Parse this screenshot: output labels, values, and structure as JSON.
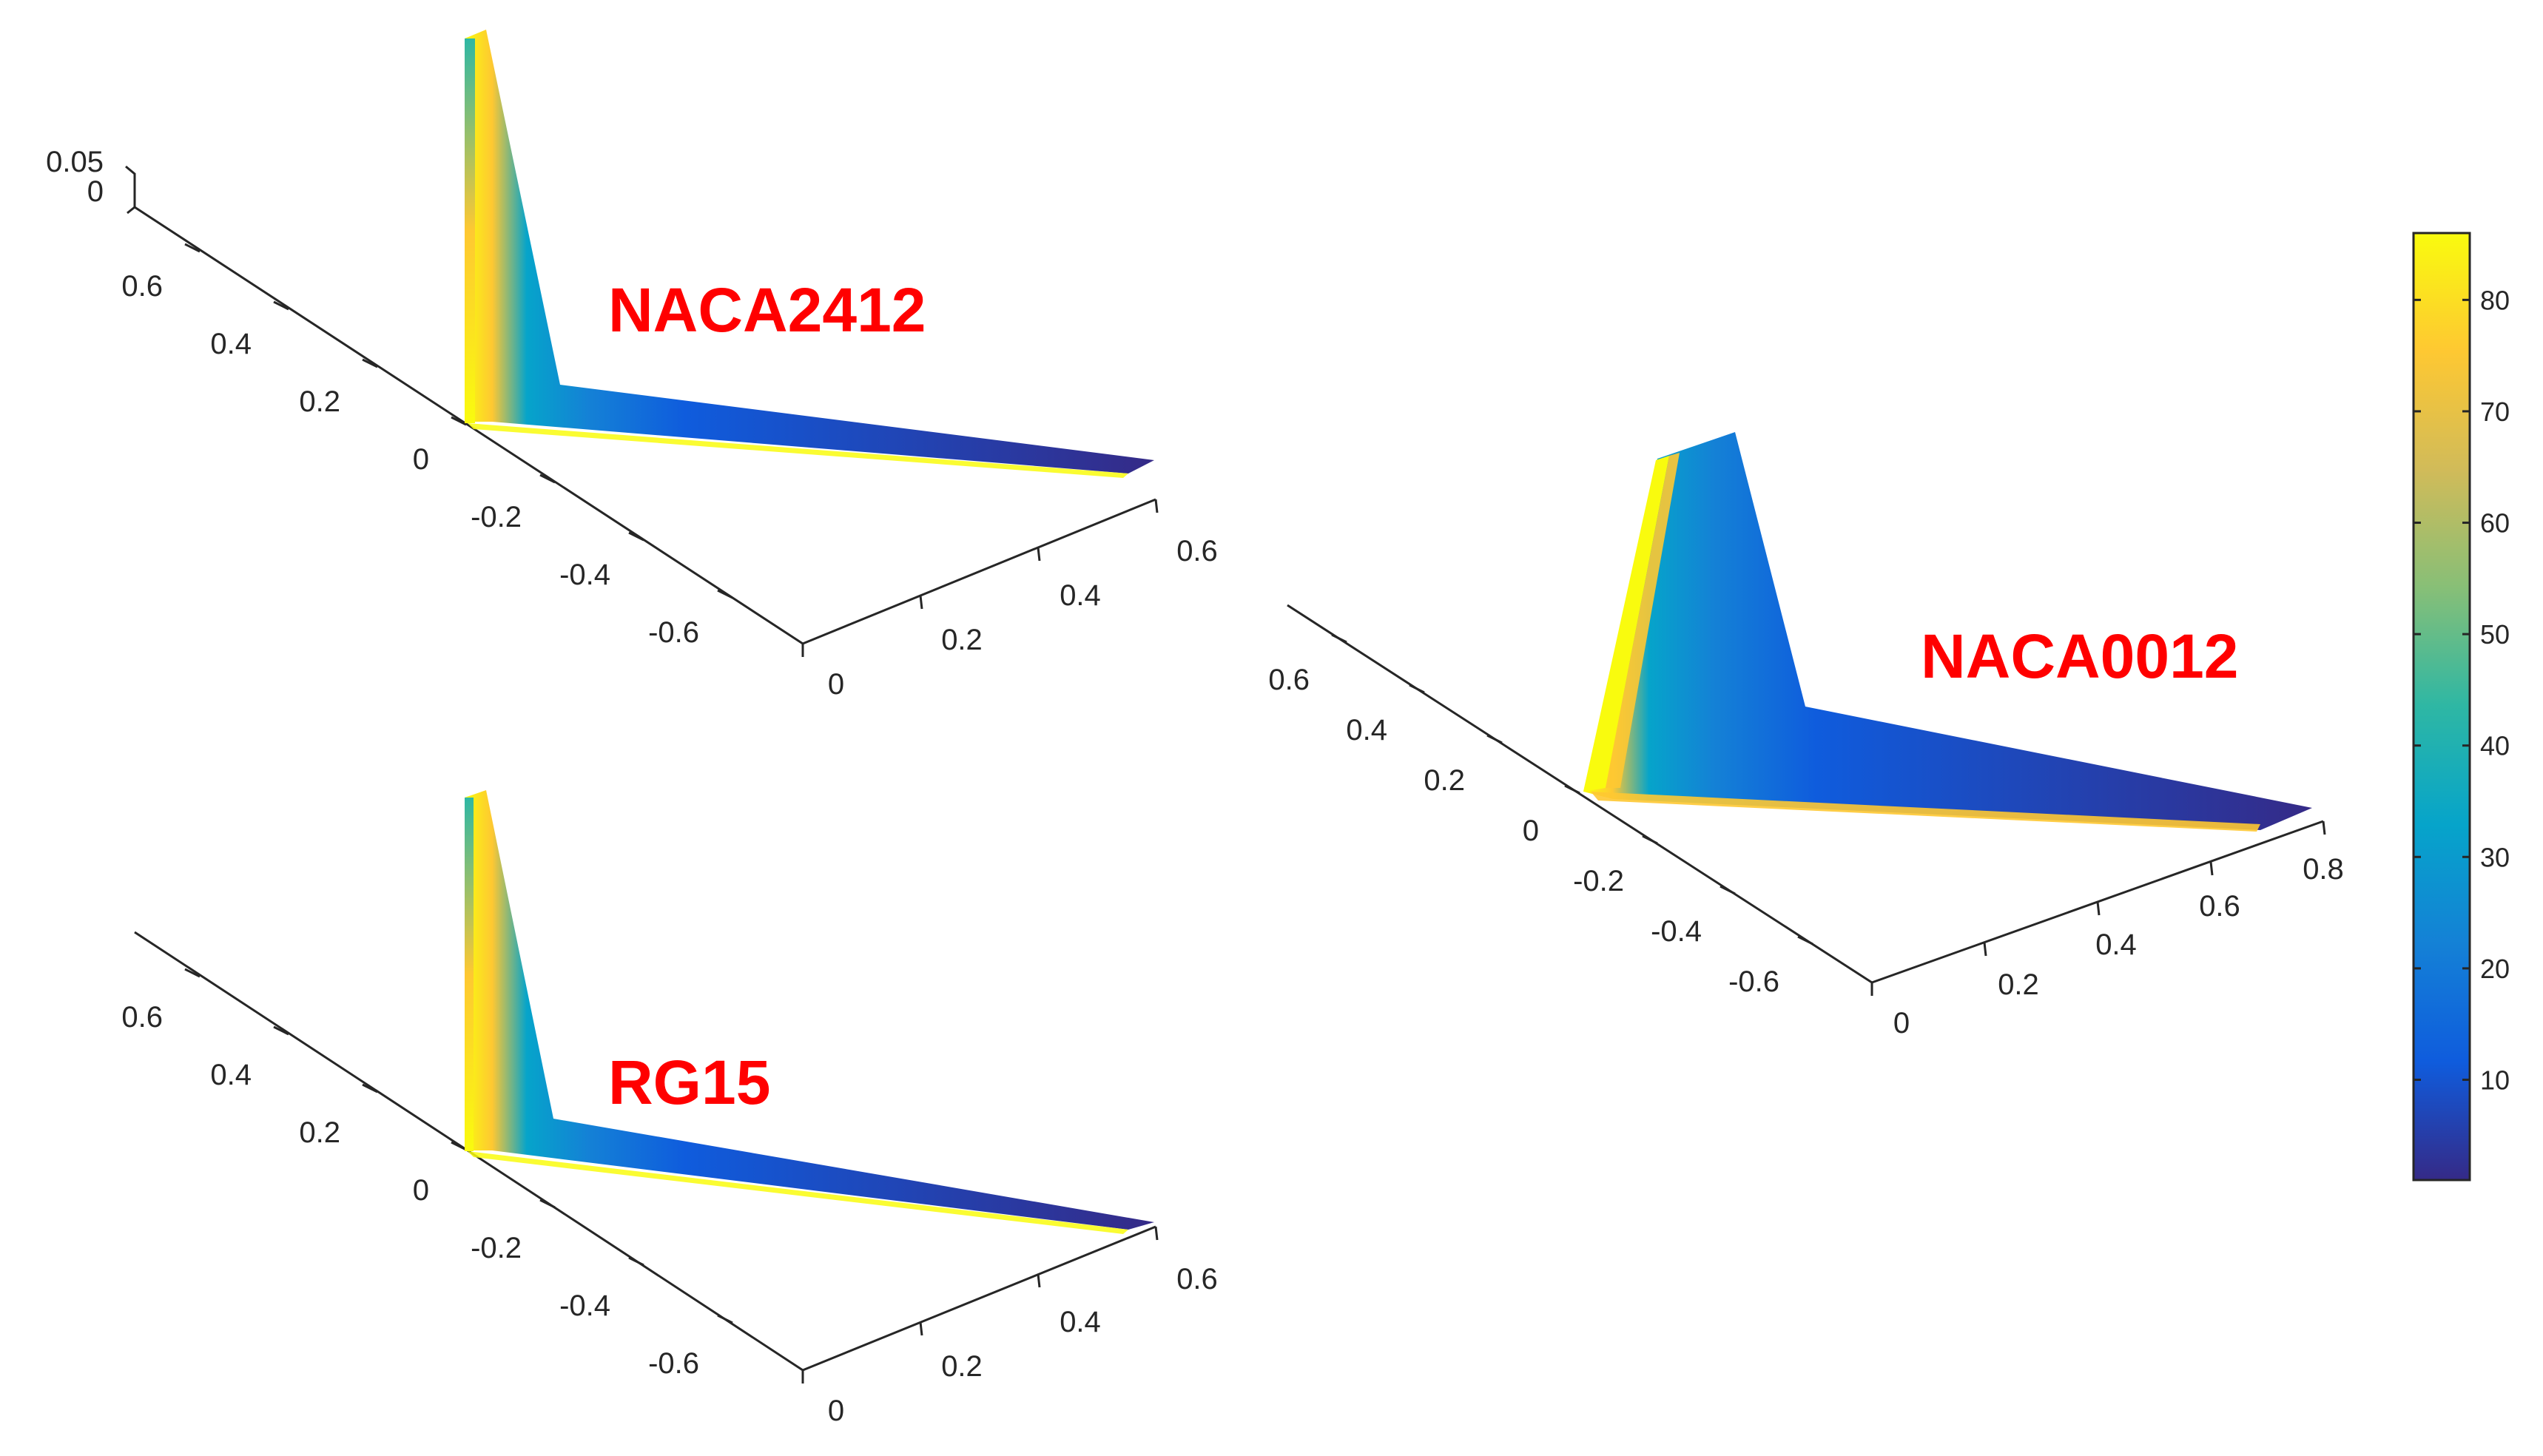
{
  "chart_data": [
    {
      "type": "surface",
      "label": "NACA2412",
      "x_ticks": [
        "0",
        "0.2",
        "0.4",
        "0.6"
      ],
      "y_ticks": [
        "-0.6",
        "-0.4",
        "-0.2",
        "0",
        "0.2",
        "0.4",
        "0.6"
      ],
      "z_ticks": [
        "0",
        "0.05"
      ]
    },
    {
      "type": "surface",
      "label": "RG15",
      "x_ticks": [
        "0",
        "0.2",
        "0.4",
        "0.6"
      ],
      "y_ticks": [
        "-0.6",
        "-0.4",
        "-0.2",
        "0",
        "0.2",
        "0.4",
        "0.6"
      ]
    },
    {
      "type": "surface",
      "label": "NACA0012",
      "x_ticks": [
        "0",
        "0.2",
        "0.4",
        "0.6",
        "0.8"
      ],
      "y_ticks": [
        "-0.6",
        "-0.4",
        "-0.2",
        "0",
        "0.2",
        "0.4",
        "0.6"
      ]
    }
  ],
  "colorbar": {
    "ticks": [
      "10",
      "20",
      "30",
      "40",
      "50",
      "60",
      "70",
      "80"
    ],
    "range": [
      1,
      86
    ],
    "colormap": "parula",
    "colors": [
      "#352a87",
      "#0f5cdd",
      "#1481d6",
      "#06a4ca",
      "#2eb7a4",
      "#87bf77",
      "#d1bb59",
      "#fec832",
      "#f9fb0e"
    ]
  }
}
